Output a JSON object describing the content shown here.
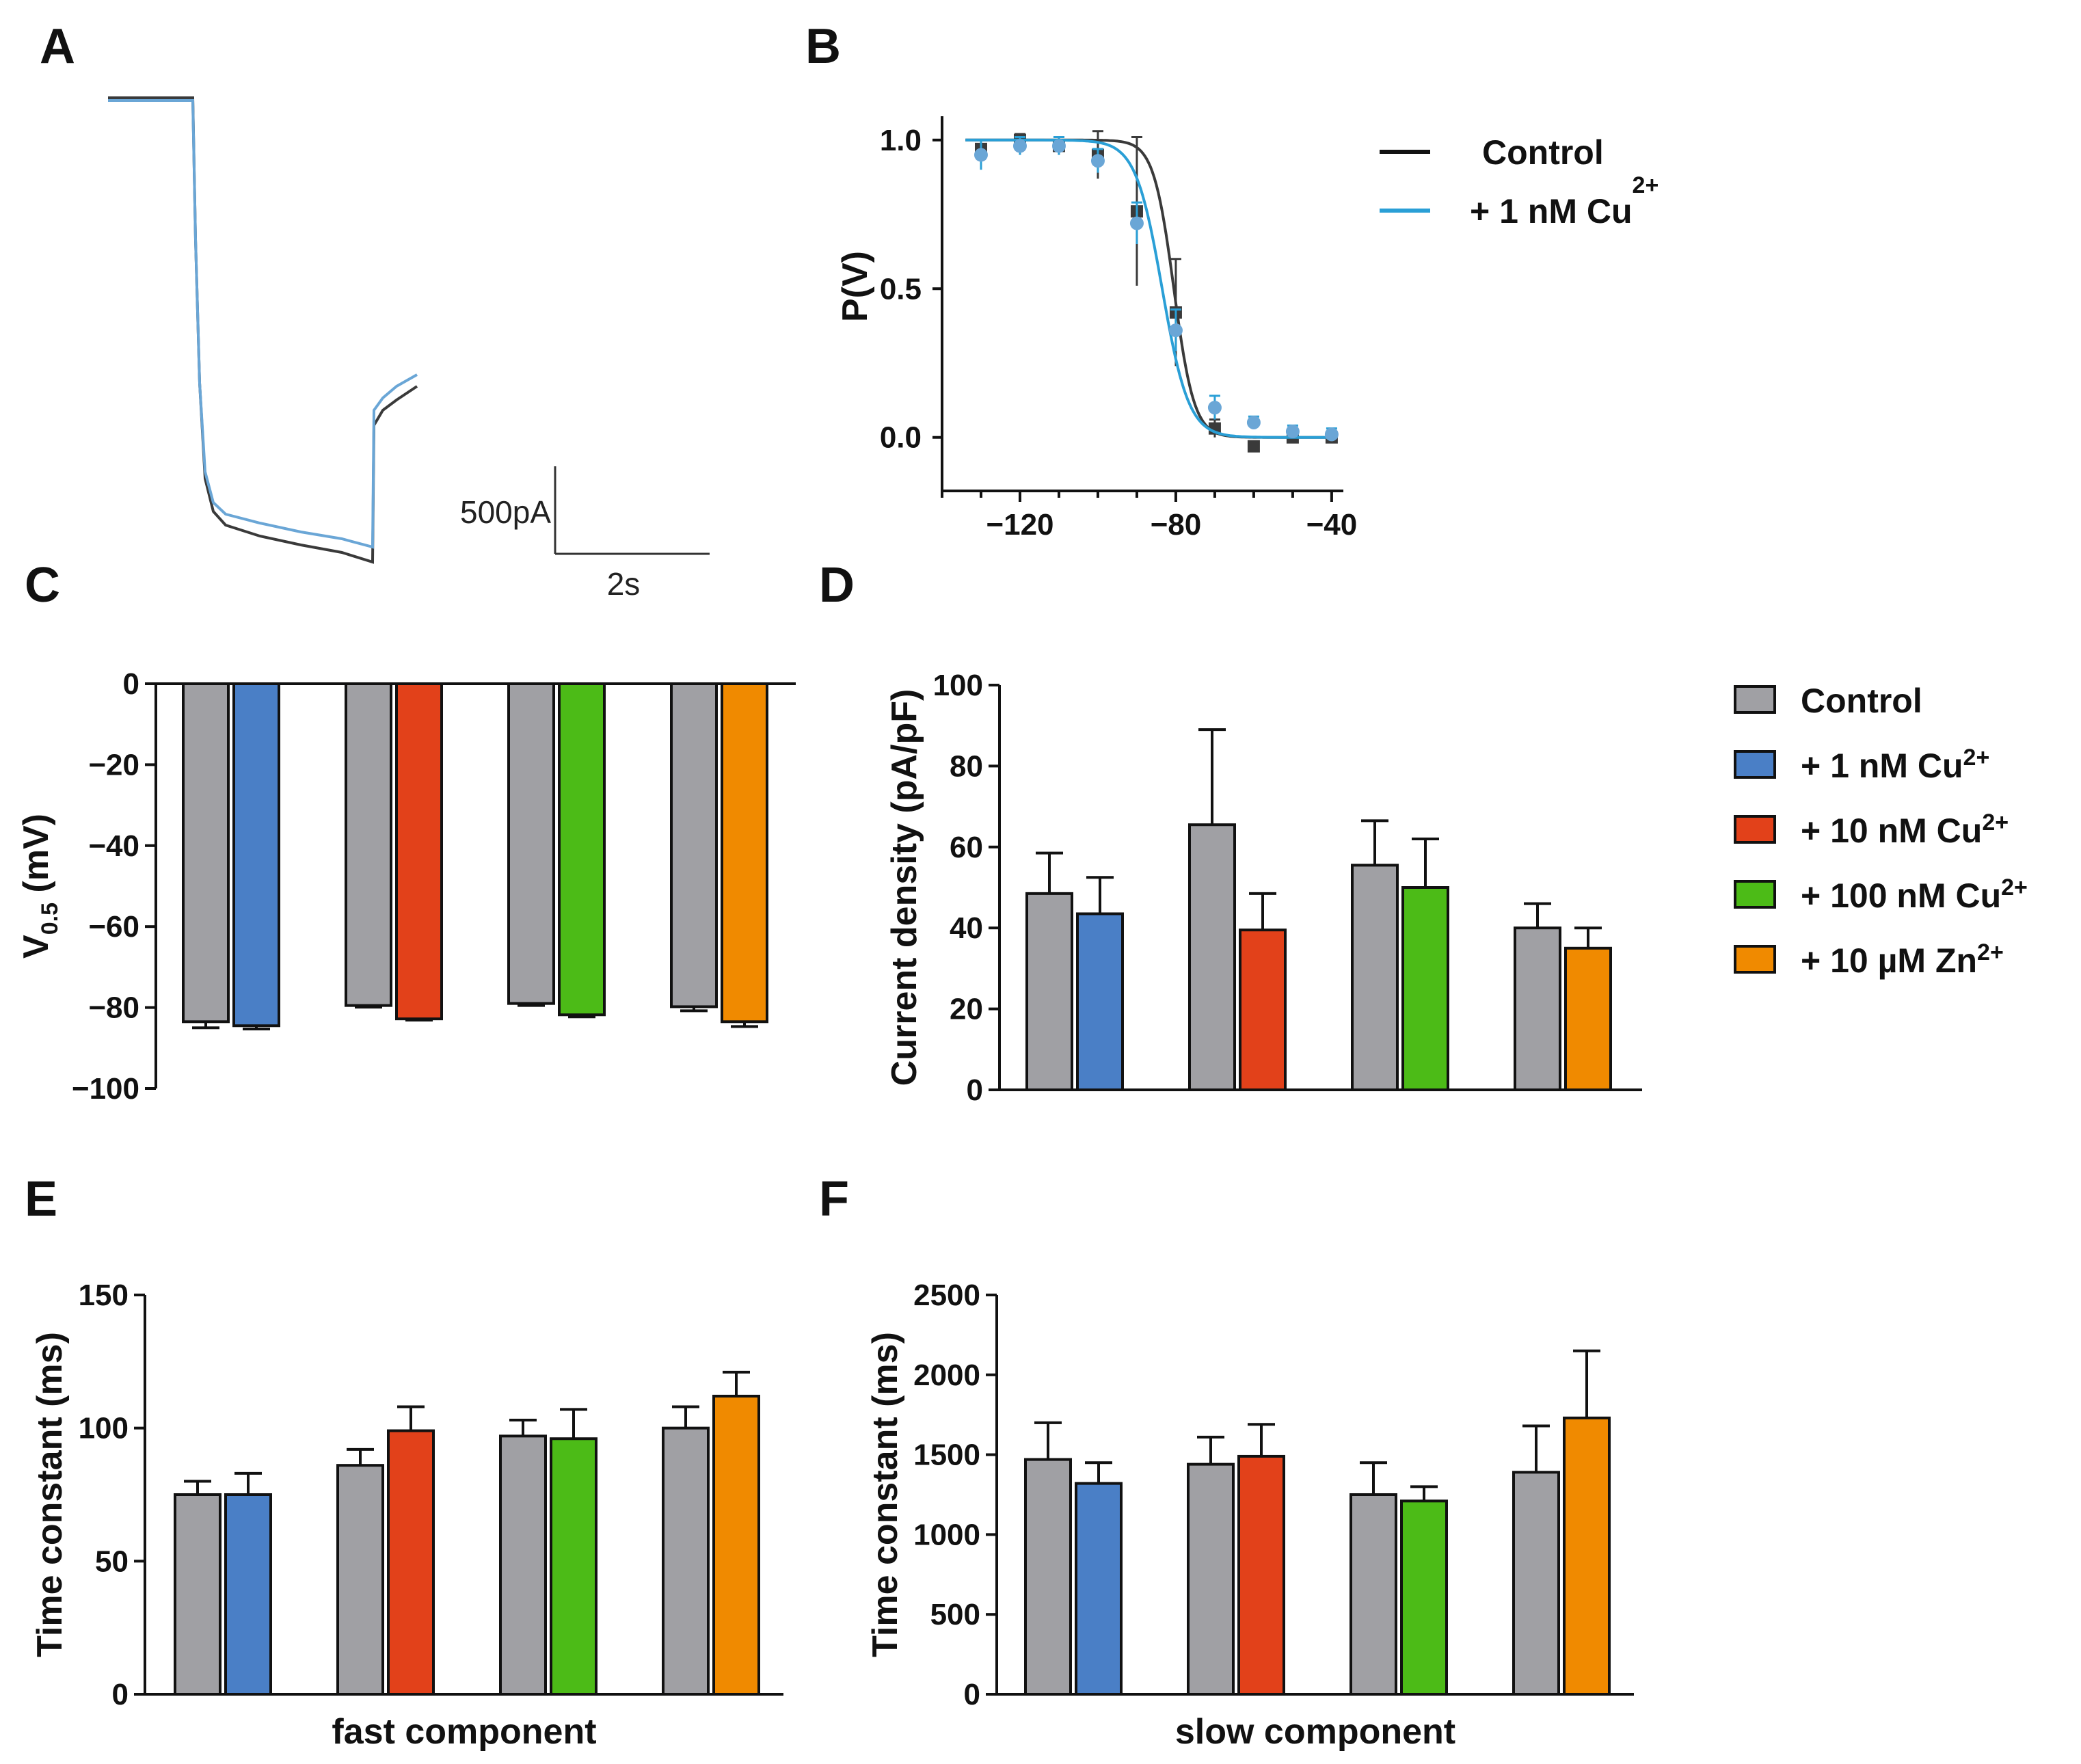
{
  "panel_labels": {
    "A": "A",
    "B": "B",
    "C": "C",
    "D": "D",
    "E": "E",
    "F": "F"
  },
  "colors": {
    "control": "#a0a0a4",
    "cu1": "#4a7fc6",
    "cu10": "#e2411a",
    "cu100": "#4cbb17",
    "zn10": "#f08a00",
    "trace_control": "#3a3a3a",
    "trace_cu": "#6aa6d6",
    "fit_cu": "#2a9fd6"
  },
  "panel_a": {
    "scale_current": "500pA",
    "scale_time": "2s"
  },
  "legend_b": {
    "control": "Control",
    "cu_prefix": "+ 1 nM Cu",
    "cu_sup": "2+"
  },
  "legend_main": {
    "items": [
      {
        "prefix": "Control",
        "sup": "",
        "color_key": "control"
      },
      {
        "prefix": "+ 1 nM Cu",
        "sup": "2+",
        "color_key": "cu1"
      },
      {
        "prefix": "+ 10 nM Cu",
        "sup": "2+",
        "color_key": "cu10"
      },
      {
        "prefix": "+ 100 nM Cu",
        "sup": "2+",
        "color_key": "cu100"
      },
      {
        "prefix": "+ 10 µM Zn",
        "sup": "2+",
        "color_key": "zn10"
      }
    ]
  },
  "chart_data": [
    {
      "id": "B",
      "type": "scatter",
      "title": "",
      "xlabel": "",
      "ylabel": "P(V)",
      "xlim": [
        -140,
        -37
      ],
      "ylim": [
        -0.18,
        1.08
      ],
      "xticks": [
        -120,
        -80,
        -40
      ],
      "xtick_labels": [
        "−120",
        "−80",
        "−40"
      ],
      "yticks": [
        0.0,
        0.5,
        1.0
      ],
      "ytick_labels": [
        "0.0",
        "0.5",
        "1.0"
      ],
      "series": [
        {
          "name": "Control",
          "color_key": "trace_control",
          "v05": -80.5,
          "k": 2.6,
          "x": [
            -130,
            -120,
            -110,
            -100,
            -90,
            -80,
            -70,
            -60,
            -50,
            -40
          ],
          "y": [
            0.97,
            1.0,
            0.98,
            0.95,
            0.76,
            0.42,
            0.03,
            -0.03,
            0.0,
            0.0
          ],
          "err": [
            0.03,
            0.02,
            0.03,
            0.08,
            0.25,
            0.18,
            0.03,
            0.0,
            0.01,
            0.02
          ]
        },
        {
          "name": "+ 1 nM Cu2+",
          "color_key": "fit_cu",
          "v05": -83.5,
          "k": 3.4,
          "x": [
            -130,
            -120,
            -110,
            -100,
            -90,
            -80,
            -70,
            -60,
            -50,
            -40
          ],
          "y": [
            0.95,
            0.98,
            0.98,
            0.93,
            0.72,
            0.36,
            0.1,
            0.05,
            0.02,
            0.01
          ],
          "err": [
            0.05,
            0.03,
            0.03,
            0.04,
            0.07,
            0.07,
            0.04,
            0.02,
            0.02,
            0.02
          ]
        }
      ]
    },
    {
      "id": "C",
      "type": "bar",
      "title": "",
      "ylabel_main": "V",
      "ylabel_sub": "0.5",
      "ylabel_tail": " (mV)",
      "ylim": [
        -100,
        0
      ],
      "yticks": [
        0,
        -20,
        -40,
        -60,
        -80,
        -100
      ],
      "ytick_labels": [
        "0",
        "−20",
        "−40",
        "−60",
        "−80",
        "−100"
      ],
      "groups": [
        {
          "control": -83.5,
          "control_err": 1.5,
          "treat": -84.5,
          "treat_err": 0.8,
          "color_key": "cu1"
        },
        {
          "control": -79.5,
          "control_err": 0.4,
          "treat": -82.8,
          "treat_err": 0.3,
          "color_key": "cu10"
        },
        {
          "control": -79.0,
          "control_err": 0.5,
          "treat": -81.8,
          "treat_err": 0.5,
          "color_key": "cu100"
        },
        {
          "control": -79.8,
          "control_err": 1.0,
          "treat": -83.5,
          "treat_err": 1.2,
          "color_key": "zn10"
        }
      ]
    },
    {
      "id": "D",
      "type": "bar",
      "title": "",
      "ylabel": "Current density (pA/pF)",
      "ylim": [
        0,
        100
      ],
      "yticks": [
        0,
        20,
        40,
        60,
        80,
        100
      ],
      "ytick_labels": [
        "0",
        "20",
        "40",
        "60",
        "80",
        "100"
      ],
      "groups": [
        {
          "control": 48.5,
          "control_err": 10,
          "treat": 43.5,
          "treat_err": 9,
          "color_key": "cu1"
        },
        {
          "control": 65.5,
          "control_err": 23.5,
          "treat": 39.5,
          "treat_err": 9,
          "color_key": "cu10"
        },
        {
          "control": 55.5,
          "control_err": 11,
          "treat": 50,
          "treat_err": 12,
          "color_key": "cu100"
        },
        {
          "control": 40,
          "control_err": 6,
          "treat": 35,
          "treat_err": 5,
          "color_key": "zn10"
        }
      ]
    },
    {
      "id": "E",
      "type": "bar",
      "title": "",
      "xlabel": "fast component",
      "ylabel": "Time constant (ms)",
      "ylim": [
        0,
        150
      ],
      "yticks": [
        0,
        50,
        100,
        150
      ],
      "ytick_labels": [
        "0",
        "50",
        "100",
        "150"
      ],
      "groups": [
        {
          "control": 75,
          "control_err": 5,
          "treat": 75,
          "treat_err": 8,
          "color_key": "cu1"
        },
        {
          "control": 86,
          "control_err": 6,
          "treat": 99,
          "treat_err": 9,
          "color_key": "cu10"
        },
        {
          "control": 97,
          "control_err": 6,
          "treat": 96,
          "treat_err": 11,
          "color_key": "cu100"
        },
        {
          "control": 100,
          "control_err": 8,
          "treat": 112,
          "treat_err": 9,
          "color_key": "zn10"
        }
      ]
    },
    {
      "id": "F",
      "type": "bar",
      "title": "",
      "xlabel": "slow component",
      "ylabel": "Time constant (ms)",
      "ylim": [
        0,
        2500
      ],
      "yticks": [
        0,
        500,
        1000,
        1500,
        2000,
        2500
      ],
      "ytick_labels": [
        "0",
        "500",
        "1000",
        "1500",
        "2000",
        "2500"
      ],
      "groups": [
        {
          "control": 1470,
          "control_err": 230,
          "treat": 1320,
          "treat_err": 130,
          "color_key": "cu1"
        },
        {
          "control": 1440,
          "control_err": 170,
          "treat": 1490,
          "treat_err": 200,
          "color_key": "cu10"
        },
        {
          "control": 1250,
          "control_err": 200,
          "treat": 1210,
          "treat_err": 90,
          "color_key": "cu100"
        },
        {
          "control": 1390,
          "control_err": 290,
          "treat": 1730,
          "treat_err": 420,
          "color_key": "zn10"
        }
      ]
    }
  ]
}
